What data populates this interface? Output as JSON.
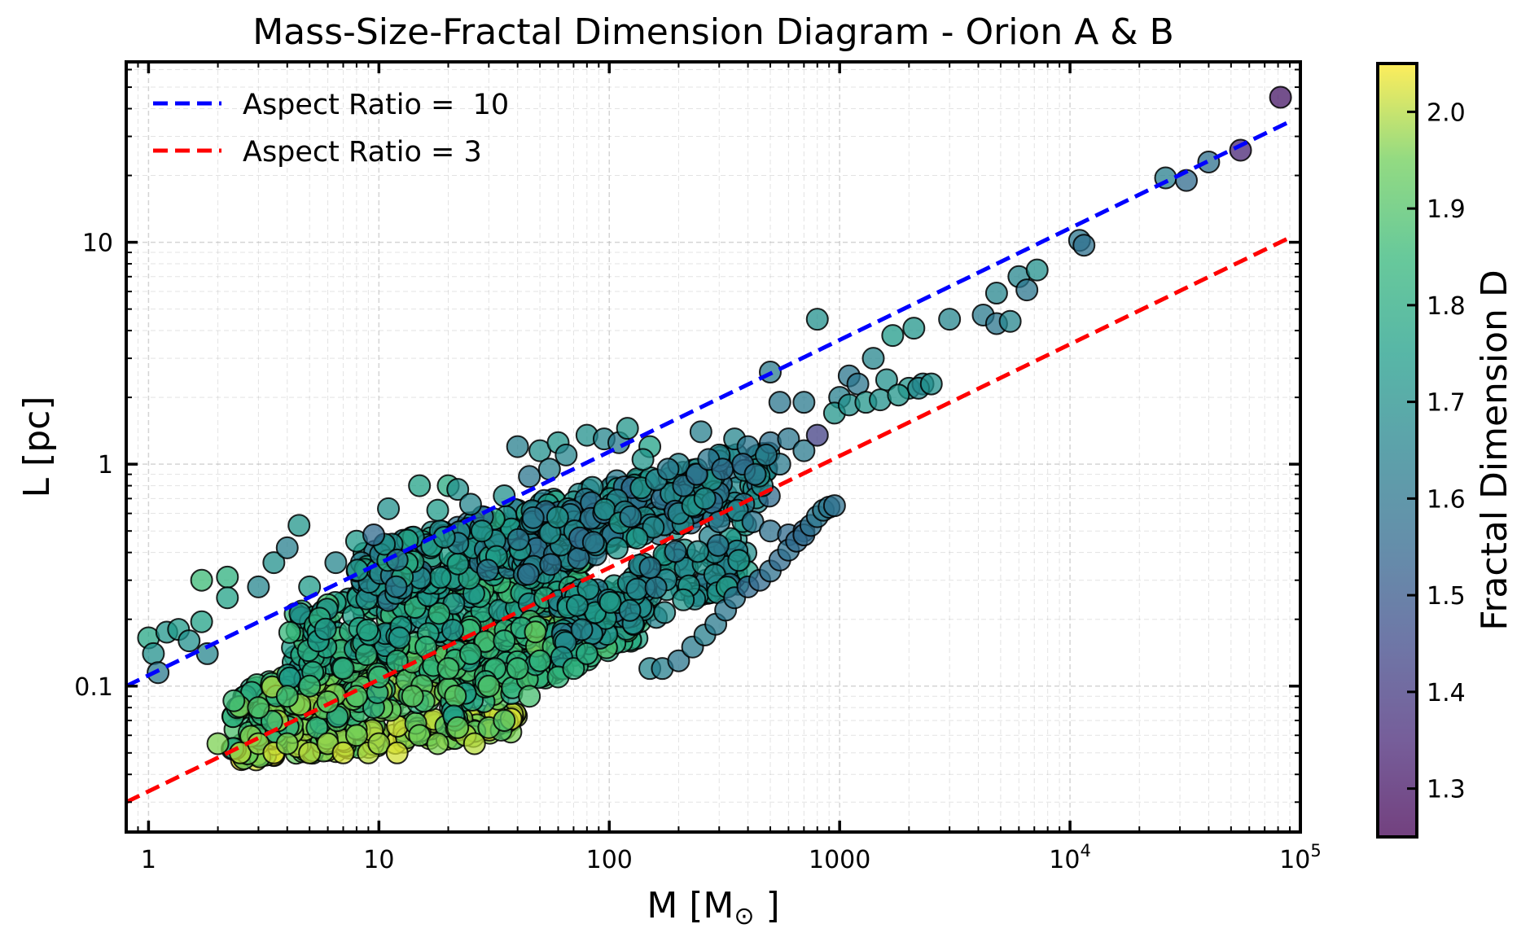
{
  "chart_data": {
    "type": "scatter",
    "title": "Mass-Size-Fractal Dimension Diagram - Orion A & B",
    "xlabel": "M [M⊙]",
    "ylabel": "L [pc]",
    "xscale": "log",
    "yscale": "log",
    "xlim": [
      0.8,
      100000
    ],
    "ylim": [
      0.022,
      65
    ],
    "grid": true,
    "legend_position": "top-left",
    "x_ticks": [
      {
        "value": 1,
        "label": "1"
      },
      {
        "value": 10,
        "label": "10"
      },
      {
        "value": 100,
        "label": "100"
      },
      {
        "value": 1000,
        "label": "1000"
      },
      {
        "value": 10000,
        "label": "10",
        "exp": "4"
      },
      {
        "value": 100000,
        "label": "10",
        "exp": "5"
      }
    ],
    "y_ticks": [
      {
        "value": 0.1,
        "label": "0.1"
      },
      {
        "value": 1,
        "label": "1"
      },
      {
        "value": 10,
        "label": "10"
      }
    ],
    "colorbar": {
      "label": "Fractal Dimension D",
      "min": 1.25,
      "max": 2.05,
      "colormap": "viridis",
      "alpha": 0.75,
      "ticks": [
        "1.3",
        "1.4",
        "1.5",
        "1.6",
        "1.7",
        "1.8",
        "1.9",
        "2.0"
      ]
    },
    "lines": [
      {
        "name": "Aspect Ratio =  10",
        "color": "#0000ff",
        "style": "dashed",
        "x": [
          0.8,
          90000
        ],
        "y": [
          0.1,
          35
        ]
      },
      {
        "name": "Aspect Ratio = 3",
        "color": "#ff0000",
        "style": "dashed",
        "x": [
          0.8,
          90000
        ],
        "y": [
          0.03,
          10.5
        ]
      }
    ],
    "series": [
      {
        "points": [
          [
            1,
            0.165,
            1.78
          ],
          [
            1.05,
            0.14,
            1.7
          ],
          [
            1.1,
            0.115,
            1.62
          ],
          [
            1.2,
            0.175,
            1.72
          ],
          [
            1.35,
            0.18,
            1.74
          ],
          [
            1.5,
            0.16,
            1.7
          ],
          [
            1.7,
            0.195,
            1.76
          ],
          [
            1.8,
            0.14,
            1.66
          ],
          [
            1.7,
            0.3,
            1.86
          ],
          [
            2.2,
            0.31,
            1.82
          ],
          [
            2.2,
            0.25,
            1.76
          ],
          [
            3.0,
            0.28,
            1.66
          ],
          [
            3.5,
            0.36,
            1.7
          ],
          [
            4,
            0.42,
            1.64
          ],
          [
            4.5,
            0.53,
            1.72
          ],
          [
            5,
            0.28,
            1.74
          ],
          [
            6.5,
            0.36,
            1.66
          ],
          [
            8,
            0.45,
            1.74
          ],
          [
            9.5,
            0.48,
            1.56
          ],
          [
            11,
            0.63,
            1.7
          ],
          [
            12,
            0.37,
            1.62
          ],
          [
            15,
            0.8,
            1.76
          ],
          [
            18,
            0.62,
            1.74
          ],
          [
            20,
            0.8,
            1.8
          ],
          [
            22,
            0.77,
            1.7
          ],
          [
            25,
            0.66,
            1.66
          ],
          [
            28,
            0.5,
            1.74
          ],
          [
            35,
            0.72,
            1.7
          ],
          [
            40,
            1.2,
            1.64
          ],
          [
            45,
            0.88,
            1.6
          ],
          [
            50,
            1.15,
            1.7
          ],
          [
            55,
            0.95,
            1.64
          ],
          [
            60,
            1.25,
            1.72
          ],
          [
            65,
            1.1,
            1.66
          ],
          [
            80,
            1.35,
            1.7
          ],
          [
            95,
            1.3,
            1.66
          ],
          [
            110,
            1.25,
            1.62
          ],
          [
            120,
            1.45,
            1.72
          ],
          [
            150,
            1.2,
            1.76
          ],
          [
            200,
            1.0,
            1.66
          ],
          [
            250,
            1.4,
            1.64
          ],
          [
            300,
            1.1,
            1.68
          ],
          [
            350,
            1.3,
            1.66
          ],
          [
            400,
            1.2,
            1.6
          ],
          [
            500,
            1.25,
            1.58
          ],
          [
            550,
            1.0,
            1.62
          ],
          [
            600,
            1.3,
            1.6
          ],
          [
            700,
            1.15,
            1.62
          ],
          [
            800,
            1.35,
            1.42
          ],
          [
            140,
            1.05,
            1.72
          ],
          [
            160,
            0.85,
            1.66
          ],
          [
            180,
            0.95,
            1.62
          ],
          [
            210,
            0.8,
            1.6
          ],
          [
            240,
            0.9,
            1.56
          ],
          [
            270,
            1.05,
            1.6
          ],
          [
            310,
            0.95,
            1.58
          ],
          [
            380,
            1.0,
            1.56
          ],
          [
            430,
            0.9,
            1.6
          ],
          [
            480,
            1.1,
            1.62
          ],
          [
            200,
            0.6,
            1.68
          ],
          [
            230,
            0.65,
            1.72
          ],
          [
            260,
            0.7,
            1.7
          ],
          [
            300,
            0.55,
            1.62
          ],
          [
            360,
            0.62,
            1.66
          ],
          [
            420,
            0.55,
            1.6
          ],
          [
            500,
            0.5,
            1.58
          ],
          [
            600,
            0.48,
            1.56
          ],
          [
            700,
            0.5,
            1.54
          ],
          [
            500,
            2.6,
            1.62
          ],
          [
            550,
            1.9,
            1.6
          ],
          [
            700,
            1.9,
            1.62
          ],
          [
            800,
            4.5,
            1.7
          ],
          [
            1000,
            2.0,
            1.64
          ],
          [
            1100,
            2.5,
            1.6
          ],
          [
            1200,
            2.3,
            1.6
          ],
          [
            1400,
            3.0,
            1.66
          ],
          [
            1600,
            2.4,
            1.7
          ],
          [
            1700,
            3.8,
            1.74
          ],
          [
            2000,
            2.2,
            1.72
          ],
          [
            2100,
            4.1,
            1.72
          ],
          [
            2300,
            2.3,
            1.66
          ],
          [
            3000,
            4.5,
            1.66
          ],
          [
            4200,
            4.7,
            1.62
          ],
          [
            4800,
            4.3,
            1.6
          ],
          [
            5500,
            4.4,
            1.66
          ],
          [
            4800,
            5.9,
            1.66
          ],
          [
            6000,
            7.0,
            1.66
          ],
          [
            6500,
            6.1,
            1.6
          ],
          [
            7200,
            7.5,
            1.7
          ],
          [
            11000,
            10.2,
            1.6
          ],
          [
            11500,
            9.7,
            1.58
          ],
          [
            26000,
            19.5,
            1.64
          ],
          [
            32000,
            19.0,
            1.56
          ],
          [
            40000,
            23,
            1.58
          ],
          [
            55000,
            26,
            1.34
          ],
          [
            82000,
            45,
            1.3
          ],
          [
            950,
            1.7,
            1.72
          ],
          [
            1100,
            1.85,
            1.7
          ],
          [
            1300,
            1.9,
            1.72
          ],
          [
            1500,
            1.95,
            1.7
          ],
          [
            1800,
            2.05,
            1.72
          ],
          [
            2200,
            2.2,
            1.68
          ],
          [
            2500,
            2.3,
            1.7
          ],
          [
            150,
            0.12,
            1.66
          ],
          [
            170,
            0.12,
            1.64
          ],
          [
            200,
            0.13,
            1.6
          ],
          [
            230,
            0.15,
            1.62
          ],
          [
            260,
            0.17,
            1.64
          ],
          [
            290,
            0.19,
            1.62
          ],
          [
            320,
            0.22,
            1.6
          ],
          [
            350,
            0.25,
            1.6
          ],
          [
            400,
            0.28,
            1.56
          ],
          [
            450,
            0.3,
            1.56
          ],
          [
            500,
            0.33,
            1.58
          ],
          [
            550,
            0.37,
            1.56
          ],
          [
            600,
            0.41,
            1.58
          ],
          [
            650,
            0.45,
            1.56
          ],
          [
            700,
            0.48,
            1.56
          ],
          [
            750,
            0.53,
            1.58
          ],
          [
            800,
            0.58,
            1.6
          ],
          [
            850,
            0.62,
            1.62
          ],
          [
            900,
            0.64,
            1.6
          ],
          [
            950,
            0.65,
            1.58
          ],
          [
            2,
            0.055,
            1.96
          ],
          [
            2.5,
            0.05,
            2.0
          ],
          [
            3,
            0.055,
            1.98
          ],
          [
            3.5,
            0.05,
            2.02
          ],
          [
            4,
            0.055,
            1.96
          ],
          [
            5,
            0.05,
            2.0
          ],
          [
            6,
            0.055,
            1.98
          ],
          [
            7,
            0.05,
            2.02
          ],
          [
            8,
            0.06,
            1.96
          ],
          [
            9,
            0.05,
            2.0
          ],
          [
            10,
            0.055,
            1.98
          ],
          [
            12,
            0.05,
            2.02
          ],
          [
            15,
            0.06,
            1.94
          ],
          [
            18,
            0.055,
            1.96
          ],
          [
            22,
            0.065,
            1.94
          ],
          [
            26,
            0.055,
            2.0
          ],
          [
            30,
            0.065,
            1.92
          ],
          [
            35,
            0.07,
            1.9
          ],
          [
            3,
            0.08,
            1.9
          ],
          [
            4,
            0.09,
            1.88
          ],
          [
            5,
            0.1,
            1.86
          ],
          [
            6,
            0.085,
            1.92
          ],
          [
            7,
            0.12,
            1.84
          ],
          [
            8,
            0.09,
            1.9
          ],
          [
            10,
            0.11,
            1.86
          ],
          [
            12,
            0.13,
            1.82
          ],
          [
            14,
            0.09,
            1.92
          ],
          [
            16,
            0.15,
            1.84
          ],
          [
            20,
            0.12,
            1.88
          ],
          [
            25,
            0.14,
            1.84
          ],
          [
            30,
            0.1,
            1.9
          ],
          [
            35,
            0.16,
            1.82
          ],
          [
            40,
            0.12,
            1.86
          ],
          [
            45,
            0.09,
            1.88
          ],
          [
            50,
            0.13,
            1.84
          ],
          [
            60,
            0.11,
            1.84
          ],
          [
            70,
            0.12,
            1.82
          ],
          [
            80,
            0.14,
            1.8
          ]
        ]
      }
    ],
    "cloud_regions": [
      {
        "x_range": [
          2.5,
          40
        ],
        "y_range": [
          0.048,
          0.075
        ],
        "d_range": [
          1.9,
          2.04
        ],
        "count": 180
      },
      {
        "x_range": [
          2.3,
          60
        ],
        "y_range": [
          0.06,
          0.2
        ],
        "d_range": [
          1.78,
          2.0
        ],
        "count": 360
      },
      {
        "x_range": [
          4,
          80
        ],
        "y_range": [
          0.12,
          0.45
        ],
        "d_range": [
          1.68,
          1.88
        ],
        "count": 330
      },
      {
        "x_range": [
          8,
          150
        ],
        "y_range": [
          0.25,
          0.8
        ],
        "d_range": [
          1.58,
          1.8
        ],
        "count": 280
      },
      {
        "x_range": [
          40,
          500
        ],
        "y_range": [
          0.35,
          1.1
        ],
        "d_range": [
          1.56,
          1.74
        ],
        "count": 200
      },
      {
        "x_range": [
          20,
          150
        ],
        "y_range": [
          0.08,
          0.3
        ],
        "d_range": [
          1.74,
          1.94
        ],
        "count": 160
      },
      {
        "x_range": [
          60,
          400
        ],
        "y_range": [
          0.15,
          0.5
        ],
        "d_range": [
          1.6,
          1.76
        ],
        "count": 140
      }
    ]
  }
}
